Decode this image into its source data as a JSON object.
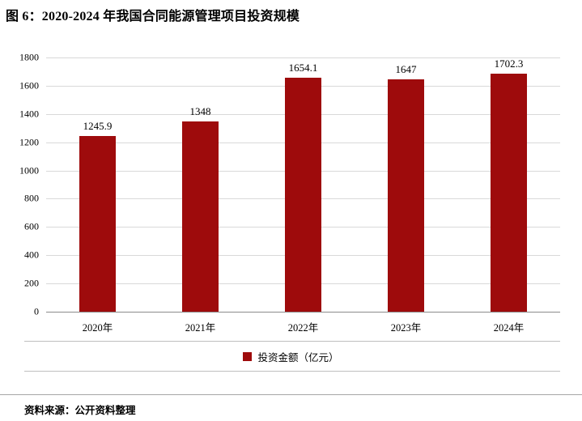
{
  "title": "图 6：2020-2024 年我国合同能源管理项目投资规模",
  "source": "资料来源：公开资料整理",
  "chart_data": {
    "type": "bar",
    "title": "2020-2024 年我国合同能源管理项目投资规模",
    "categories": [
      "2020年",
      "2021年",
      "2022年",
      "2023年",
      "2024年"
    ],
    "values": [
      1245.9,
      1348,
      1654.1,
      1647,
      1702.3
    ],
    "labels": [
      "1245.9",
      "1348",
      "1654.1",
      "1647",
      "1702.3"
    ],
    "legend": "投资金额（亿元）",
    "legend_position": "bottom",
    "bar_color": "#9e0b0c",
    "gridline_color": "#d9d9d9",
    "axis_color": "#8c8c8c",
    "xlabel": "",
    "ylabel": "",
    "ylim": [
      0,
      1800
    ],
    "ytick_step": 200,
    "grid": true
  }
}
